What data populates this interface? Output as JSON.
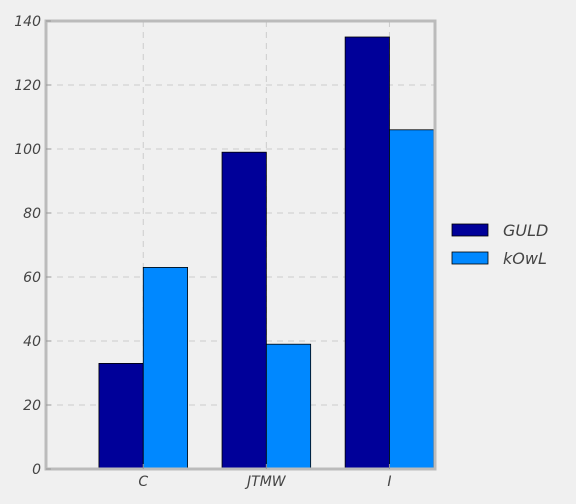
{
  "chart_data": {
    "type": "bar",
    "categories": [
      "C",
      "JTMW",
      "I"
    ],
    "series": [
      {
        "name": "GULD",
        "values": [
          33,
          99,
          135
        ]
      },
      {
        "name": "kOwL",
        "values": [
          63,
          39,
          106
        ]
      }
    ],
    "ylim": [
      0,
      140
    ],
    "yticks": [
      0,
      20,
      40,
      60,
      80,
      100,
      120,
      140
    ],
    "grid": true,
    "legend_position": "right",
    "colors": [
      "#000099",
      "#0088ff"
    ],
    "background": "#f0f0f0",
    "frame_color": "#bbbbbb",
    "grid_color": "#cccccc"
  }
}
